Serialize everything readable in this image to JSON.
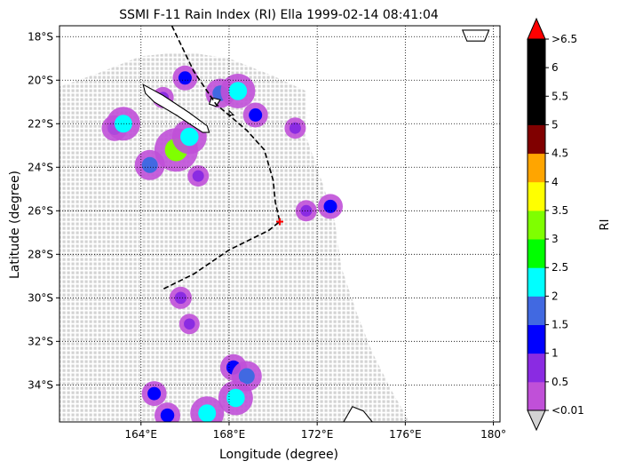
{
  "chart_data": {
    "type": "map",
    "title": "SSMI F-11 Rain Index (RI) Ella 1999-02-14 08:41:04",
    "xlabel": "Longitude (degree)",
    "ylabel": "Latitude (degree)",
    "lon_range": [
      160.3,
      180.3
    ],
    "lat_range": [
      -35.7,
      -17.5
    ],
    "x_ticks": [
      {
        "value": 164,
        "label": "164°E"
      },
      {
        "value": 168,
        "label": "168°E"
      },
      {
        "value": 172,
        "label": "172°E"
      },
      {
        "value": 176,
        "label": "176°E"
      },
      {
        "value": 180,
        "label": "180°"
      }
    ],
    "y_ticks": [
      {
        "value": -18,
        "label": "18°S"
      },
      {
        "value": -20,
        "label": "20°S"
      },
      {
        "value": -22,
        "label": "22°S"
      },
      {
        "value": -24,
        "label": "24°S"
      },
      {
        "value": -26,
        "label": "26°S"
      },
      {
        "value": -28,
        "label": "28°S"
      },
      {
        "value": -30,
        "label": "30°S"
      },
      {
        "value": -32,
        "label": "32°S"
      },
      {
        "value": -34,
        "label": "34°S"
      }
    ],
    "grid": true,
    "colorbar": {
      "label": "RI",
      "boundaries": [
        0.01,
        0.5,
        1,
        1.5,
        2,
        2.5,
        3,
        3.5,
        4,
        4.5,
        5,
        5.5,
        6,
        6.5
      ],
      "colors": [
        "#c050d8",
        "#8a2be2",
        "#0000ff",
        "#4169e1",
        "#00ffff",
        "#00ff00",
        "#7fff00",
        "#ffff00",
        "#ffa500",
        "#800000",
        "#000000",
        "#000000",
        "#000000"
      ],
      "under_color": "#d3d3d3",
      "over_color": "#ff0000",
      "tick_labels": [
        "<0.01",
        "0.5",
        "1",
        "1.5",
        "2",
        "2.5",
        "3",
        "3.5",
        "4",
        "4.5",
        "5",
        "5.5",
        "6",
        ">6.5"
      ]
    },
    "swath": {
      "edge": [
        [
          160.3,
          -20.3
        ],
        [
          162,
          -19.7
        ],
        [
          164,
          -18.9
        ],
        [
          166,
          -18.7
        ],
        [
          168,
          -19.0
        ],
        [
          170,
          -19.8
        ],
        [
          171.5,
          -20.5
        ],
        [
          171.5,
          -22.6
        ],
        [
          172.2,
          -24.6
        ],
        [
          172.8,
          -26.5
        ],
        [
          173.1,
          -28.6
        ],
        [
          173.8,
          -30.7
        ],
        [
          174.5,
          -32.5
        ],
        [
          175.4,
          -34.3
        ],
        [
          176.2,
          -35.7
        ],
        [
          160.3,
          -35.7
        ]
      ],
      "rain_cells": [
        {
          "lon": 165.0,
          "lat": -20.8,
          "ri": 0.6
        },
        {
          "lon": 166.0,
          "lat": -19.9,
          "ri": 1.0
        },
        {
          "lon": 167.6,
          "lat": -20.6,
          "ri": 1.5
        },
        {
          "lon": 168.4,
          "lat": -20.5,
          "ri": 2.1
        },
        {
          "lon": 169.2,
          "lat": -21.6,
          "ri": 1.0
        },
        {
          "lon": 162.8,
          "lat": -22.2,
          "ri": 1.1
        },
        {
          "lon": 163.2,
          "lat": -22.0,
          "ri": 2.0
        },
        {
          "lon": 165.6,
          "lat": -23.2,
          "ri": 3.1
        },
        {
          "lon": 166.2,
          "lat": -22.6,
          "ri": 2.1
        },
        {
          "lon": 164.4,
          "lat": -23.9,
          "ri": 1.6
        },
        {
          "lon": 166.6,
          "lat": -24.4,
          "ri": 0.6
        },
        {
          "lon": 171.5,
          "lat": -26.0,
          "ri": 0.6
        },
        {
          "lon": 172.6,
          "lat": -25.8,
          "ri": 1.0
        },
        {
          "lon": 171.0,
          "lat": -22.2,
          "ri": 0.6
        },
        {
          "lon": 165.8,
          "lat": -30.0,
          "ri": 0.7
        },
        {
          "lon": 166.2,
          "lat": -31.2,
          "ri": 0.5
        },
        {
          "lon": 168.2,
          "lat": -33.2,
          "ri": 1.2
        },
        {
          "lon": 168.8,
          "lat": -33.6,
          "ri": 1.6
        },
        {
          "lon": 168.3,
          "lat": -34.6,
          "ri": 2.1
        },
        {
          "lon": 164.6,
          "lat": -34.4,
          "ri": 1.0
        },
        {
          "lon": 167.0,
          "lat": -35.3,
          "ri": 2.0
        },
        {
          "lon": 165.2,
          "lat": -35.4,
          "ri": 1.1
        }
      ]
    },
    "track": [
      [
        165.4,
        -17.5
      ],
      [
        166.4,
        -19.6
      ],
      [
        167.4,
        -21.1
      ],
      [
        168.8,
        -22.3
      ],
      [
        169.6,
        -23.2
      ],
      [
        170.0,
        -24.6
      ],
      [
        170.1,
        -25.6
      ],
      [
        170.3,
        -26.5
      ],
      [
        169.8,
        -26.9
      ],
      [
        168.0,
        -27.8
      ],
      [
        166.4,
        -28.9
      ],
      [
        165.0,
        -29.6
      ]
    ],
    "storm_position": {
      "lon": 170.3,
      "lat": -26.5
    },
    "coastlines": [
      [
        [
          164.1,
          -20.2
        ],
        [
          165.0,
          -20.7
        ],
        [
          166.2,
          -21.5
        ],
        [
          167.0,
          -22.1
        ],
        [
          167.1,
          -22.4
        ],
        [
          166.8,
          -22.4
        ],
        [
          165.6,
          -21.6
        ],
        [
          164.6,
          -21.0
        ],
        [
          164.2,
          -20.6
        ],
        [
          164.1,
          -20.2
        ]
      ],
      [
        [
          167.2,
          -20.8
        ],
        [
          167.6,
          -20.9
        ],
        [
          167.4,
          -21.2
        ],
        [
          167.1,
          -21.1
        ],
        [
          167.2,
          -20.8
        ]
      ],
      [
        [
          168.0,
          -21.4
        ],
        [
          168.2,
          -21.6
        ],
        [
          168.0,
          -21.6
        ],
        [
          168.0,
          -21.4
        ]
      ],
      [
        [
          173.6,
          -35.0
        ],
        [
          174.1,
          -35.2
        ],
        [
          174.5,
          -35.7
        ],
        [
          173.2,
          -35.7
        ],
        [
          173.6,
          -35.0
        ]
      ],
      [
        [
          178.6,
          -17.7
        ],
        [
          179.8,
          -17.7
        ],
        [
          179.6,
          -18.2
        ],
        [
          178.8,
          -18.2
        ],
        [
          178.6,
          -17.7
        ]
      ]
    ]
  }
}
